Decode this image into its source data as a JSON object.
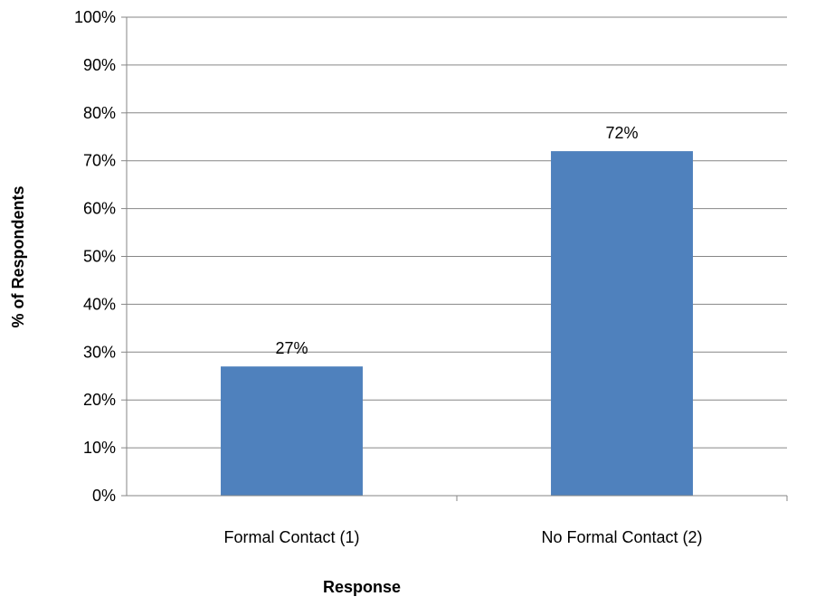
{
  "chart_data": {
    "type": "bar",
    "title": "",
    "xlabel": "Response",
    "ylabel": "% of Respondents",
    "categories": [
      "Formal Contact (1)",
      "No Formal Contact (2)"
    ],
    "values": [
      27,
      72
    ],
    "data_labels": [
      "27%",
      "72%"
    ],
    "ylim": [
      0,
      100
    ],
    "yticks": [
      0,
      10,
      20,
      30,
      40,
      50,
      60,
      70,
      80,
      90,
      100
    ],
    "ytick_labels": [
      "0%",
      "10%",
      "20%",
      "30%",
      "40%",
      "50%",
      "60%",
      "70%",
      "80%",
      "90%",
      "100%"
    ],
    "grid": true,
    "legend": "none",
    "bar_color": "#4F81BD",
    "grid_color": "#868686"
  }
}
